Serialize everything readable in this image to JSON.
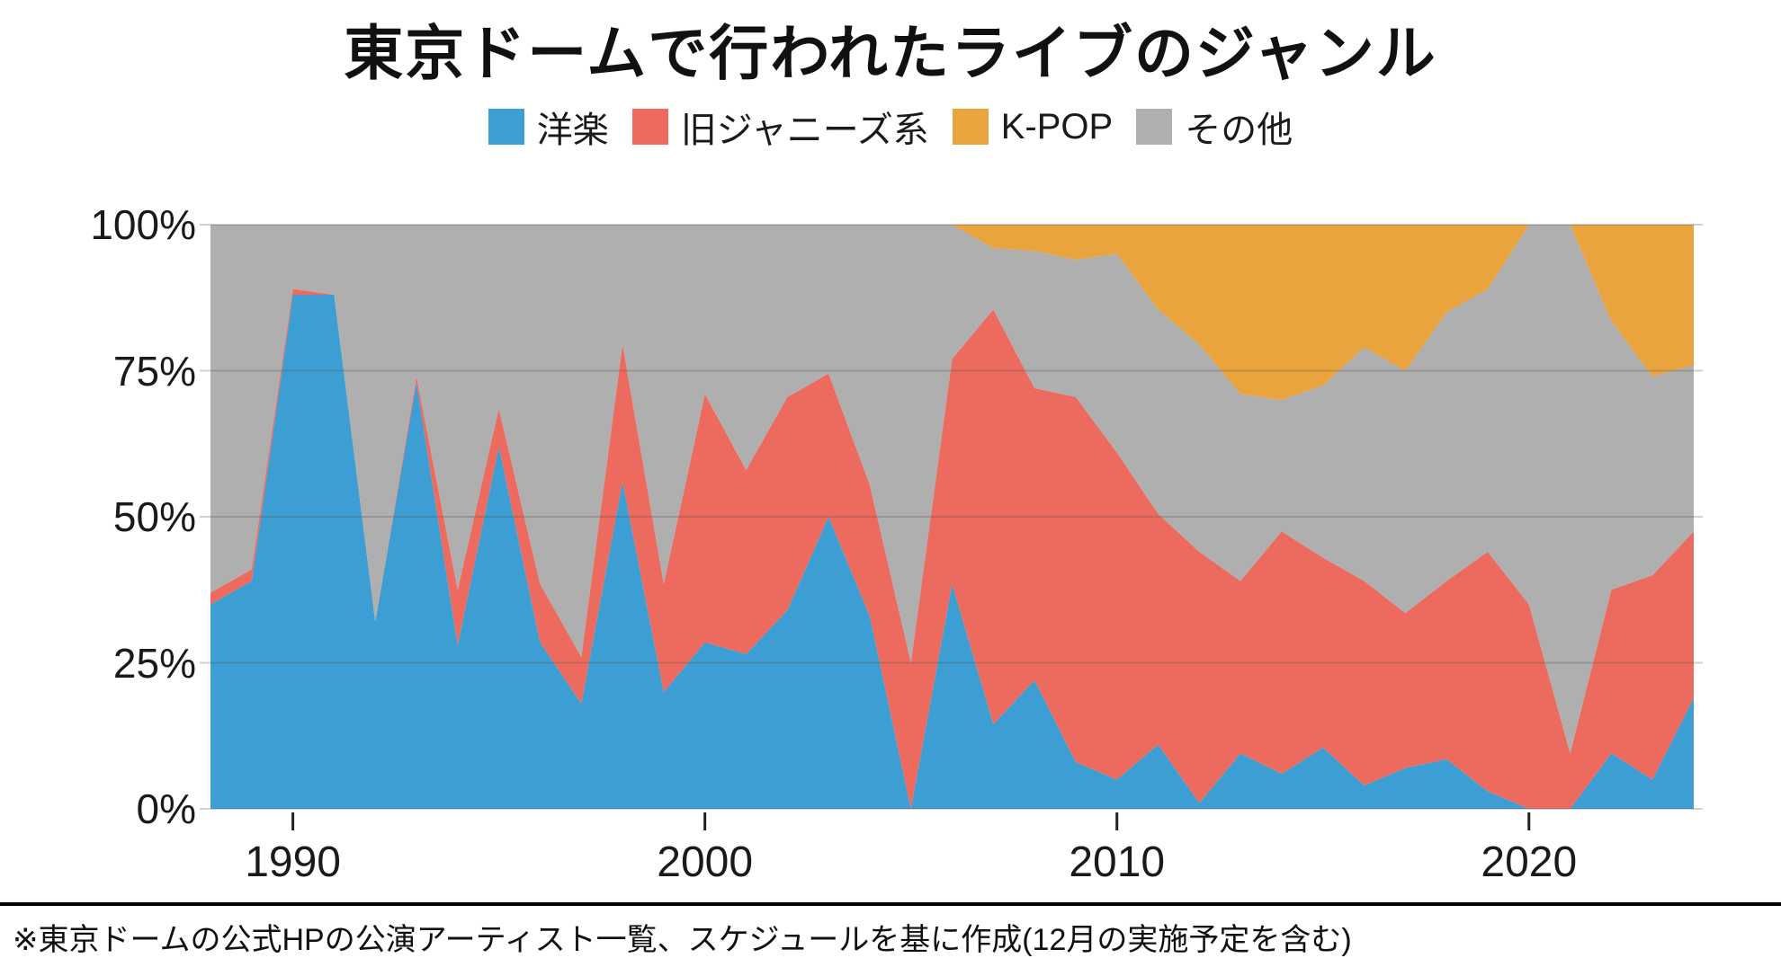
{
  "chart_data": {
    "type": "area",
    "stacked": true,
    "percent": true,
    "title": "東京ドームで行われたライブのジャンル",
    "x": [
      1988,
      1989,
      1990,
      1991,
      1992,
      1993,
      1994,
      1995,
      1996,
      1997,
      1998,
      1999,
      2000,
      2001,
      2002,
      2003,
      2004,
      2005,
      2006,
      2007,
      2008,
      2009,
      2010,
      2011,
      2012,
      2013,
      2014,
      2015,
      2016,
      2017,
      2018,
      2019,
      2020,
      2021,
      2022,
      2023,
      2024
    ],
    "series": [
      {
        "key": "yogaku",
        "name": "洋楽",
        "color": "#3D9ED3",
        "values": [
          35,
          39,
          88,
          88,
          32,
          73,
          28,
          62,
          28.5,
          18,
          56,
          20,
          28.5,
          26.5,
          34,
          50,
          33,
          0,
          38.5,
          14.5,
          22,
          8,
          5,
          11,
          1,
          9.5,
          6,
          10.5,
          4,
          7,
          8.5,
          3,
          0,
          0,
          9.5,
          5,
          19
        ]
      },
      {
        "key": "johnnys",
        "name": "旧ジャニーズ系",
        "color": "#ED6A5E",
        "values": [
          2,
          2,
          1,
          0,
          0,
          1,
          9.5,
          6.5,
          10,
          8,
          23.5,
          18.5,
          42.5,
          31.5,
          36.5,
          24.5,
          22.5,
          25,
          38.5,
          71,
          50,
          62.5,
          56,
          39.5,
          43,
          29.5,
          41.5,
          32.5,
          35,
          26.5,
          30.5,
          41,
          35,
          9.5,
          28,
          35,
          28.5
        ]
      },
      {
        "key": "kpop",
        "name": "K-POP",
        "color": "#E9A43D",
        "values": [
          0,
          0,
          0,
          0,
          0,
          0,
          0,
          0,
          0,
          0,
          0,
          0,
          0,
          0,
          0,
          0,
          0,
          0,
          0,
          4,
          4.5,
          6,
          5,
          14.5,
          20.5,
          29,
          30,
          27.5,
          21,
          25,
          15,
          11,
          0,
          0,
          16.5,
          26,
          24
        ]
      },
      {
        "key": "sonota",
        "name": "その他",
        "color": "#AFAFAF",
        "values": [
          63,
          59,
          11,
          12,
          68,
          26,
          62.5,
          31.5,
          61.5,
          74,
          20.5,
          61.5,
          29,
          42,
          29.5,
          25.5,
          44.5,
          75,
          23,
          10.5,
          23.5,
          23.5,
          34,
          35,
          35.5,
          32,
          22.5,
          29.5,
          40,
          41.5,
          46,
          45,
          65,
          90.5,
          46,
          34,
          28.5
        ]
      }
    ],
    "stack_order": [
      "yogaku",
      "johnnys",
      "sonota",
      "kpop"
    ],
    "legend_order": [
      "yogaku",
      "johnnys",
      "kpop",
      "sonota"
    ],
    "ylim": [
      0,
      100
    ],
    "grid": true,
    "y_ticks": [
      {
        "label": "100%",
        "value": 100
      },
      {
        "label": "75%",
        "value": 75
      },
      {
        "label": "50%",
        "value": 50
      },
      {
        "label": "25%",
        "value": 25
      },
      {
        "label": "0%",
        "value": 0
      }
    ],
    "x_ticks": [
      {
        "label": "1990",
        "value": 1990
      },
      {
        "label": "2000",
        "value": 2000
      },
      {
        "label": "2010",
        "value": 2010
      },
      {
        "label": "2020",
        "value": 2020
      }
    ]
  },
  "footer": {
    "note": "※東京ドームの公式HPの公演アーティスト一覧、スケジュールを基に作成(12月の実施予定を含む)"
  },
  "colors": {
    "background": "#ffffff",
    "grid": "#bdbdbd",
    "tick": "#222222",
    "text": "#1a1a1a"
  }
}
